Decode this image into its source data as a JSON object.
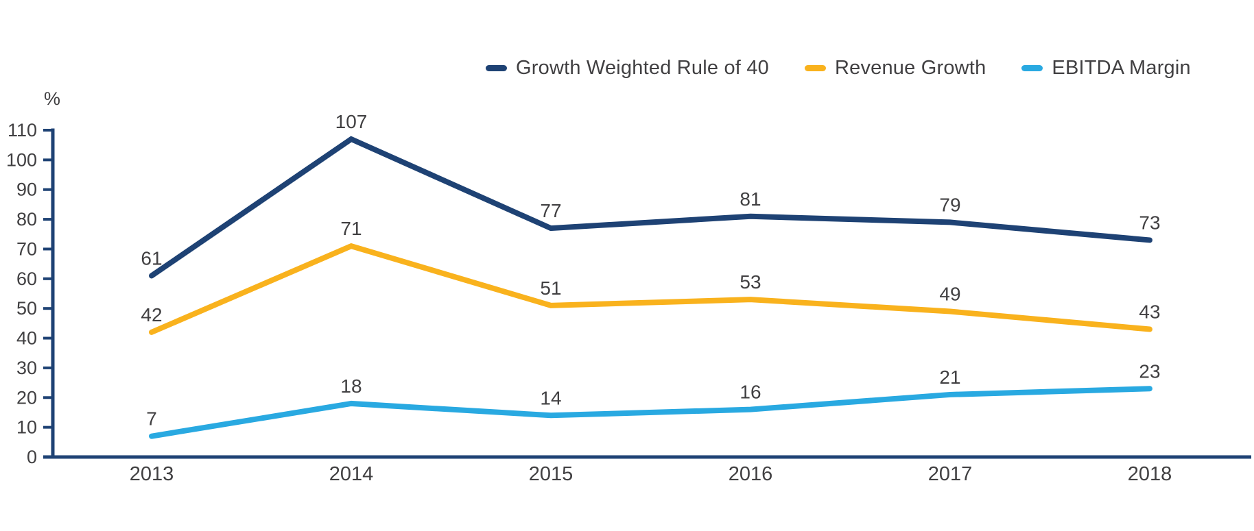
{
  "chart_data": {
    "type": "line",
    "categories": [
      "2013",
      "2014",
      "2015",
      "2016",
      "2017",
      "2018"
    ],
    "series": [
      {
        "name": "Growth Weighted Rule of 40",
        "color": "#1e4274",
        "values": [
          61,
          107,
          77,
          81,
          79,
          73
        ]
      },
      {
        "name": "Revenue Growth",
        "color": "#f9b21d",
        "values": [
          42,
          71,
          51,
          53,
          49,
          43
        ]
      },
      {
        "name": "EBITDA Margin",
        "color": "#29a9e1",
        "values": [
          7,
          18,
          14,
          16,
          21,
          23
        ]
      }
    ],
    "title": "",
    "xlabel": "",
    "ylabel": "%",
    "ylim": [
      0,
      110
    ],
    "y_ticks": [
      0,
      10,
      20,
      30,
      40,
      50,
      60,
      70,
      80,
      90,
      100,
      110
    ],
    "grid": false,
    "data_labels": true,
    "legend_position": "top-right",
    "axis_color": "#1e4274",
    "text_color": "#414042"
  }
}
